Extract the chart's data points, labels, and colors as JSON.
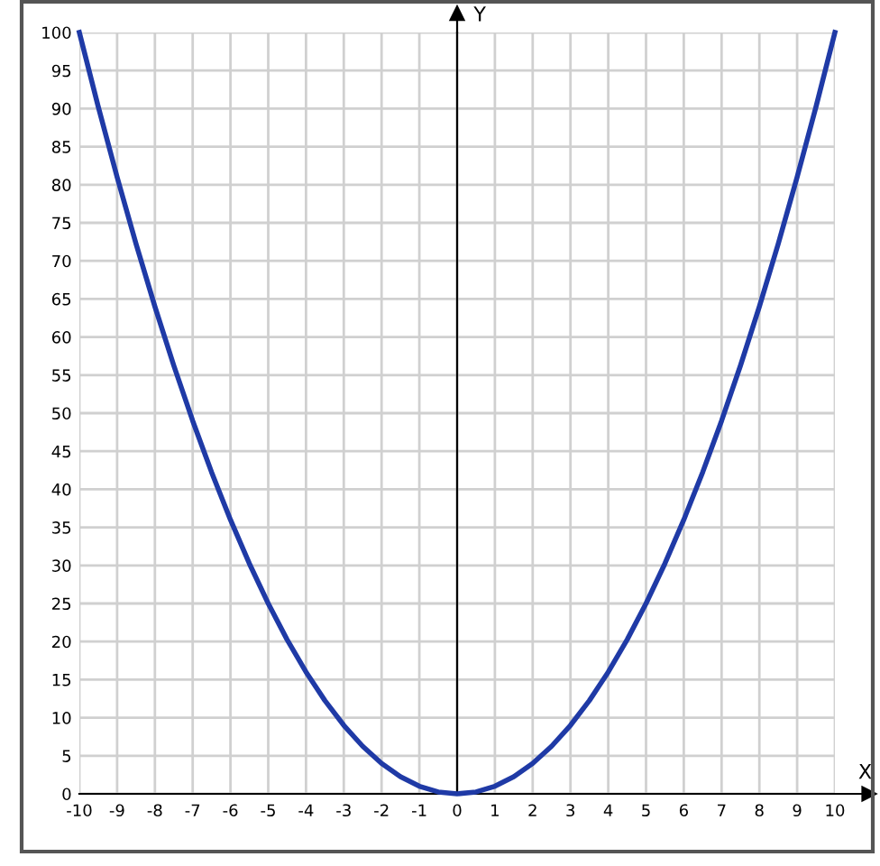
{
  "chart_data": {
    "type": "line",
    "xlabel": "X",
    "ylabel": "Y",
    "x": [
      -10,
      -9.5,
      -9,
      -8.5,
      -8,
      -7.5,
      -7,
      -6.5,
      -6,
      -5.5,
      -5,
      -4.5,
      -4,
      -3.5,
      -3,
      -2.5,
      -2,
      -1.5,
      -1,
      -0.5,
      0,
      0.5,
      1,
      1.5,
      2,
      2.5,
      3,
      3.5,
      4,
      4.5,
      5,
      5.5,
      6,
      6.5,
      7,
      7.5,
      8,
      8.5,
      9,
      9.5,
      10
    ],
    "series": [
      {
        "color": "#1f3aa6",
        "values": [
          100,
          90.25,
          81,
          72.25,
          64,
          56.25,
          49,
          42.25,
          36,
          30.25,
          25,
          20.25,
          16,
          12.25,
          9,
          6.25,
          4,
          2.25,
          1,
          0.25,
          0,
          0.25,
          1,
          2.25,
          4,
          6.25,
          9,
          12.25,
          16,
          20.25,
          25,
          30.25,
          36,
          42.25,
          49,
          56.25,
          64,
          72.25,
          81,
          90.25,
          100
        ]
      }
    ],
    "xlim": [
      -10,
      10
    ],
    "ylim": [
      0,
      100
    ],
    "xticks": [
      -10,
      -9,
      -8,
      -7,
      -6,
      -5,
      -4,
      -3,
      -2,
      -1,
      0,
      1,
      2,
      3,
      4,
      5,
      6,
      7,
      8,
      9,
      10
    ],
    "yticks": [
      0,
      5,
      10,
      15,
      20,
      25,
      30,
      35,
      40,
      45,
      50,
      55,
      60,
      65,
      70,
      75,
      80,
      85,
      90,
      95,
      100
    ],
    "grid": true,
    "marker": "none",
    "line_style": "solid",
    "legend": false
  }
}
